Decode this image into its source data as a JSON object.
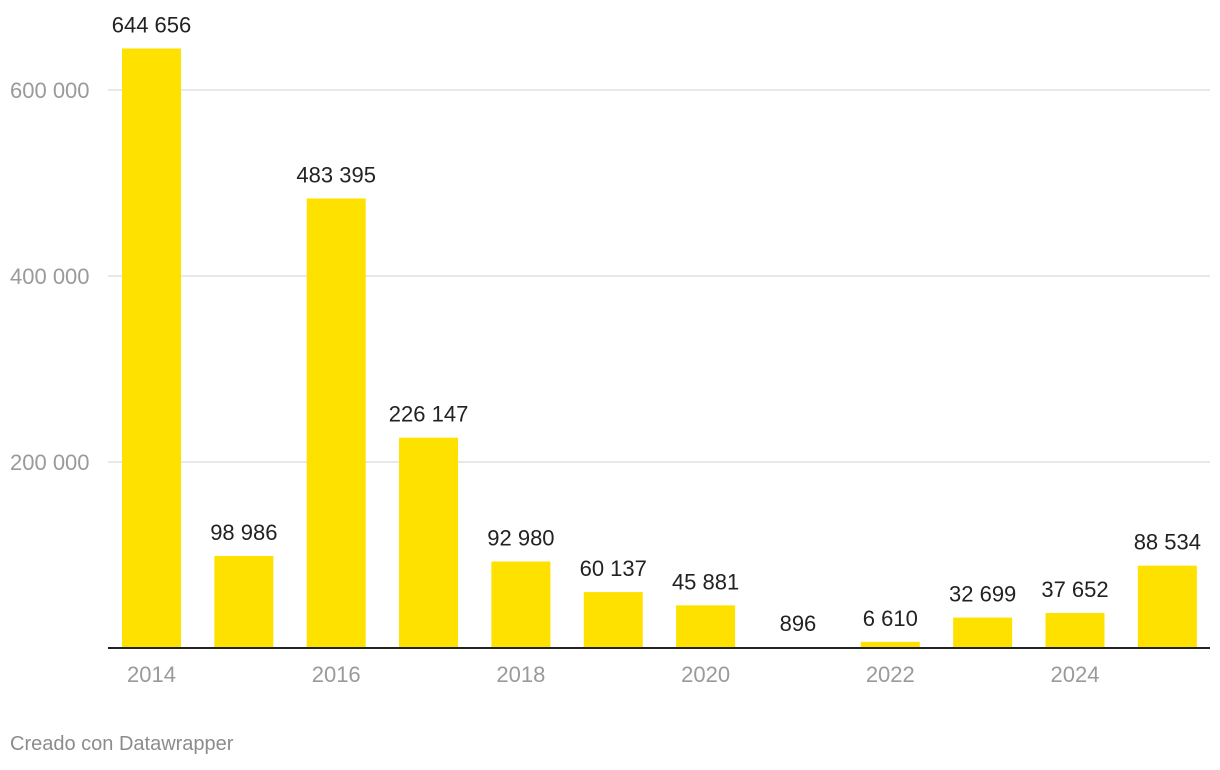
{
  "chart_data": {
    "type": "bar",
    "categories": [
      "2014",
      "2015",
      "2016",
      "2017",
      "2018",
      "2019",
      "2020",
      "2021",
      "2022",
      "2023",
      "2024",
      "2025"
    ],
    "values": [
      644656,
      98986,
      483395,
      226147,
      92980,
      60137,
      45881,
      896,
      6610,
      32699,
      37652,
      88534
    ],
    "value_labels": [
      "644 656",
      "98 986",
      "483 395",
      "226 147",
      "92 980",
      "60 137",
      "45 881",
      "896",
      "6 610",
      "32 699",
      "37 652",
      "88 534"
    ],
    "x_tick_labels": [
      "2014",
      "",
      "2016",
      "",
      "2018",
      "",
      "2020",
      "",
      "2022",
      "",
      "2024",
      ""
    ],
    "y_ticks": [
      200000,
      400000,
      600000
    ],
    "y_tick_labels": [
      "200 000",
      "400 000",
      "600 000"
    ],
    "ylim": [
      0,
      660000
    ],
    "title": "",
    "xlabel": "",
    "ylabel": "",
    "grid": true,
    "colors": {
      "bar": "#ffe100",
      "grid": "#e0e0e0",
      "axis": "#222222",
      "tick_text": "#9a9a9a",
      "value_text": "#222222"
    }
  },
  "footer": {
    "credit": "Creado con Datawrapper"
  }
}
